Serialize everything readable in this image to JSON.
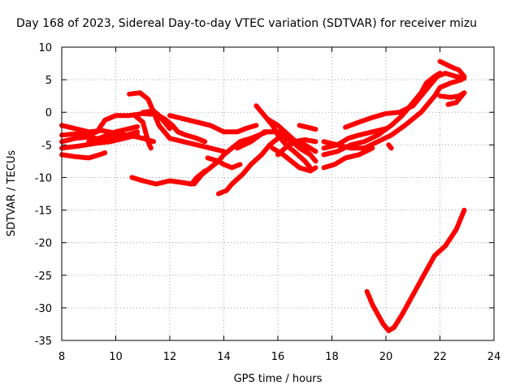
{
  "chart_data": {
    "type": "line",
    "title": "Day 168 of 2023, Sidereal Day-to-day VTEC variation (SDTVAR) for receiver mizu",
    "xlabel": "GPS time / hours",
    "ylabel": "SDTVAR / TECUs",
    "xlim": [
      8,
      24
    ],
    "ylim": [
      -35,
      10
    ],
    "xticks": [
      8,
      10,
      12,
      14,
      16,
      18,
      20,
      22,
      24
    ],
    "yticks": [
      10,
      5,
      0,
      -5,
      -10,
      -15,
      -20,
      -25,
      -30,
      -35
    ],
    "grid": true,
    "color": "#ff0000",
    "series": [
      {
        "name": "s1",
        "points": [
          [
            8.0,
            -2.0
          ],
          [
            8.5,
            -2.5
          ],
          [
            9.0,
            -3.0
          ],
          [
            9.5,
            -2.8
          ],
          [
            10.0,
            -3.2
          ],
          [
            10.4,
            -3.5
          ],
          [
            10.8,
            -3.0
          ]
        ]
      },
      {
        "name": "s2",
        "points": [
          [
            8.0,
            -4.5
          ],
          [
            8.5,
            -4.0
          ],
          [
            9.0,
            -3.8
          ],
          [
            9.5,
            -4.2
          ],
          [
            10.0,
            -3.8
          ],
          [
            10.5,
            -3.5
          ],
          [
            11.0,
            -4.0
          ],
          [
            11.4,
            -4.5
          ]
        ]
      },
      {
        "name": "s3",
        "points": [
          [
            8.0,
            -5.5
          ],
          [
            8.6,
            -5.2
          ],
          [
            9.2,
            -4.8
          ],
          [
            9.8,
            -4.5
          ],
          [
            10.3,
            -4.0
          ],
          [
            10.8,
            -3.5
          ]
        ]
      },
      {
        "name": "s4",
        "points": [
          [
            8.0,
            -6.5
          ],
          [
            8.5,
            -6.8
          ],
          [
            9.0,
            -7.0
          ],
          [
            9.4,
            -6.5
          ],
          [
            9.6,
            -6.2
          ]
        ]
      },
      {
        "name": "s5",
        "points": [
          [
            8.0,
            -3.5
          ],
          [
            8.5,
            -3.3
          ],
          [
            9.0,
            -3.5
          ],
          [
            9.3,
            -3.0
          ],
          [
            9.6,
            -1.2
          ],
          [
            10.0,
            -0.5
          ],
          [
            10.5,
            -0.5
          ],
          [
            11.0,
            -0.2
          ],
          [
            11.3,
            -0.3
          ]
        ]
      },
      {
        "name": "s6",
        "points": [
          [
            9.0,
            -4.5
          ],
          [
            9.5,
            -3.8
          ],
          [
            10.0,
            -3.0
          ],
          [
            10.5,
            -2.5
          ],
          [
            10.8,
            -2.2
          ]
        ]
      },
      {
        "name": "s7",
        "points": [
          [
            10.5,
            2.8
          ],
          [
            10.9,
            3.0
          ],
          [
            11.2,
            2.0
          ],
          [
            11.4,
            0.0
          ],
          [
            11.6,
            -2.0
          ],
          [
            12.0,
            -4.0
          ],
          [
            12.5,
            -4.5
          ],
          [
            13.0,
            -5.0
          ],
          [
            13.5,
            -5.5
          ],
          [
            14.0,
            -6.0
          ]
        ]
      },
      {
        "name": "s8",
        "points": [
          [
            10.7,
            -0.5
          ],
          [
            11.0,
            -1.5
          ],
          [
            11.1,
            -3.0
          ],
          [
            11.2,
            -4.5
          ],
          [
            11.3,
            -5.5
          ]
        ]
      },
      {
        "name": "s9",
        "points": [
          [
            10.6,
            -10.0
          ],
          [
            11.0,
            -10.5
          ],
          [
            11.5,
            -11.0
          ],
          [
            12.0,
            -10.5
          ],
          [
            12.5,
            -10.8
          ],
          [
            12.8,
            -11.0
          ],
          [
            13.0,
            -10.0
          ],
          [
            13.3,
            -9.0
          ]
        ]
      },
      {
        "name": "s10",
        "points": [
          [
            11.5,
            -0.3
          ],
          [
            11.8,
            -1.0
          ],
          [
            12.1,
            -2.0
          ],
          [
            12.3,
            -3.0
          ],
          [
            12.6,
            -3.5
          ],
          [
            13.0,
            -4.0
          ],
          [
            13.3,
            -4.5
          ]
        ]
      },
      {
        "name": "s11",
        "points": [
          [
            11.0,
            0.0
          ],
          [
            11.4,
            0.2
          ],
          [
            11.6,
            -0.5
          ],
          [
            11.8,
            -1.5
          ],
          [
            12.0,
            -2.5
          ]
        ]
      },
      {
        "name": "s12",
        "points": [
          [
            12.0,
            -0.5
          ],
          [
            12.5,
            -1.0
          ],
          [
            13.0,
            -1.5
          ],
          [
            13.5,
            -2.0
          ],
          [
            14.0,
            -3.0
          ],
          [
            14.5,
            -3.0
          ],
          [
            14.8,
            -2.5
          ],
          [
            15.2,
            -2.0
          ]
        ]
      },
      {
        "name": "s13",
        "points": [
          [
            12.9,
            -11.0
          ],
          [
            13.2,
            -9.5
          ],
          [
            13.5,
            -8.5
          ],
          [
            13.8,
            -7.5
          ],
          [
            14.0,
            -6.5
          ],
          [
            14.3,
            -5.5
          ],
          [
            14.6,
            -4.5
          ],
          [
            15.0,
            -4.0
          ],
          [
            15.3,
            -3.5
          ],
          [
            15.6,
            -3.0
          ]
        ]
      },
      {
        "name": "s14",
        "points": [
          [
            13.4,
            -7.0
          ],
          [
            13.8,
            -7.5
          ],
          [
            14.0,
            -8.0
          ],
          [
            14.3,
            -8.5
          ],
          [
            14.6,
            -8.0
          ]
        ]
      },
      {
        "name": "s15",
        "points": [
          [
            13.8,
            -12.5
          ],
          [
            14.1,
            -12.0
          ],
          [
            14.3,
            -11.0
          ],
          [
            14.7,
            -9.5
          ],
          [
            15.0,
            -8.0
          ],
          [
            15.4,
            -6.5
          ],
          [
            15.7,
            -5.0
          ],
          [
            16.0,
            -4.0
          ],
          [
            16.3,
            -3.5
          ]
        ]
      },
      {
        "name": "s16",
        "points": [
          [
            14.5,
            -5.5
          ],
          [
            15.0,
            -4.5
          ],
          [
            15.5,
            -3.0
          ],
          [
            16.0,
            -3.0
          ],
          [
            16.4,
            -4.0
          ],
          [
            16.8,
            -5.5
          ],
          [
            17.2,
            -6.5
          ]
        ]
      },
      {
        "name": "s17",
        "points": [
          [
            15.2,
            1.0
          ],
          [
            15.5,
            -0.5
          ],
          [
            15.8,
            -2.0
          ],
          [
            16.0,
            -3.5
          ],
          [
            16.3,
            -5.0
          ],
          [
            16.6,
            -6.0
          ],
          [
            17.0,
            -7.5
          ],
          [
            17.2,
            -8.5
          ]
        ]
      },
      {
        "name": "s18",
        "points": [
          [
            15.6,
            -1.0
          ],
          [
            16.0,
            -2.0
          ],
          [
            16.4,
            -3.5
          ],
          [
            16.8,
            -5.0
          ],
          [
            17.2,
            -6.5
          ],
          [
            17.4,
            -7.5
          ]
        ]
      },
      {
        "name": "s19",
        "points": [
          [
            15.8,
            -5.5
          ],
          [
            16.2,
            -6.5
          ],
          [
            16.5,
            -7.5
          ],
          [
            16.8,
            -8.5
          ],
          [
            17.2,
            -9.0
          ],
          [
            17.4,
            -8.5
          ]
        ]
      },
      {
        "name": "s20",
        "points": [
          [
            16.2,
            -4.0
          ],
          [
            16.6,
            -4.5
          ],
          [
            17.0,
            -4.2
          ],
          [
            17.4,
            -4.5
          ]
        ]
      },
      {
        "name": "s21",
        "points": [
          [
            16.0,
            -6.5
          ],
          [
            16.4,
            -5.0
          ],
          [
            16.8,
            -4.5
          ],
          [
            17.2,
            -5.5
          ],
          [
            17.4,
            -6.0
          ]
        ]
      },
      {
        "name": "s22",
        "points": [
          [
            16.8,
            -2.0
          ],
          [
            17.1,
            -2.3
          ],
          [
            17.4,
            -2.6
          ]
        ]
      },
      {
        "name": "s23",
        "points": [
          [
            17.7,
            -4.5
          ],
          [
            18.2,
            -5.0
          ],
          [
            18.7,
            -5.5
          ],
          [
            19.2,
            -5.5
          ],
          [
            19.7,
            -4.5
          ],
          [
            20.2,
            -3.5
          ],
          [
            20.7,
            -2.0
          ],
          [
            21.0,
            -1.0
          ],
          [
            21.3,
            0.0
          ],
          [
            21.5,
            1.0
          ],
          [
            21.8,
            2.5
          ],
          [
            22.0,
            3.8
          ],
          [
            22.4,
            4.5
          ],
          [
            22.8,
            5.0
          ]
        ]
      },
      {
        "name": "s24",
        "points": [
          [
            17.7,
            -6.5
          ],
          [
            18.2,
            -6.0
          ],
          [
            18.7,
            -5.0
          ],
          [
            19.2,
            -4.5
          ],
          [
            19.7,
            -3.5
          ],
          [
            20.2,
            -2.0
          ],
          [
            20.6,
            -0.5
          ],
          [
            21.0,
            1.5
          ],
          [
            21.3,
            3.0
          ],
          [
            21.5,
            4.5
          ],
          [
            21.8,
            5.5
          ],
          [
            22.0,
            6.0
          ]
        ]
      },
      {
        "name": "s25",
        "points": [
          [
            17.7,
            -8.5
          ],
          [
            18.1,
            -8.0
          ],
          [
            18.5,
            -7.0
          ],
          [
            19.0,
            -6.5
          ],
          [
            19.5,
            -5.5
          ]
        ]
      },
      {
        "name": "s26",
        "points": [
          [
            17.7,
            -5.5
          ],
          [
            18.2,
            -5.0
          ],
          [
            18.6,
            -4.0
          ],
          [
            19.0,
            -3.5
          ],
          [
            19.5,
            -3.0
          ],
          [
            20.0,
            -2.5
          ]
        ]
      },
      {
        "name": "s27",
        "points": [
          [
            18.5,
            -2.3
          ],
          [
            19.0,
            -1.5
          ],
          [
            19.5,
            -0.8
          ],
          [
            20.0,
            -0.2
          ],
          [
            20.5,
            0.0
          ],
          [
            21.0,
            1.0
          ],
          [
            21.3,
            2.5
          ],
          [
            21.6,
            4.0
          ],
          [
            21.9,
            5.5
          ],
          [
            22.2,
            6.0
          ],
          [
            22.6,
            5.5
          ],
          [
            22.9,
            5.2
          ]
        ]
      },
      {
        "name": "s28",
        "points": [
          [
            20.1,
            -5.0
          ],
          [
            20.2,
            -5.5
          ]
        ]
      },
      {
        "name": "s29",
        "points": [
          [
            22.0,
            7.8
          ],
          [
            22.4,
            7.0
          ],
          [
            22.7,
            6.5
          ],
          [
            22.9,
            5.5
          ]
        ]
      },
      {
        "name": "s30",
        "points": [
          [
            22.0,
            2.5
          ],
          [
            22.4,
            2.3
          ],
          [
            22.7,
            2.5
          ],
          [
            22.9,
            3.0
          ],
          [
            22.6,
            1.5
          ],
          [
            22.3,
            1.2
          ]
        ]
      },
      {
        "name": "s31",
        "points": [
          [
            19.3,
            -27.5
          ],
          [
            19.5,
            -29.5
          ],
          [
            19.7,
            -31.0
          ],
          [
            19.9,
            -32.5
          ],
          [
            20.1,
            -33.5
          ],
          [
            20.3,
            -33.0
          ],
          [
            20.6,
            -31.0
          ],
          [
            21.0,
            -28.0
          ],
          [
            21.4,
            -25.0
          ],
          [
            21.8,
            -22.0
          ],
          [
            22.2,
            -20.5
          ],
          [
            22.6,
            -18.0
          ],
          [
            22.9,
            -15.0
          ]
        ]
      }
    ]
  }
}
